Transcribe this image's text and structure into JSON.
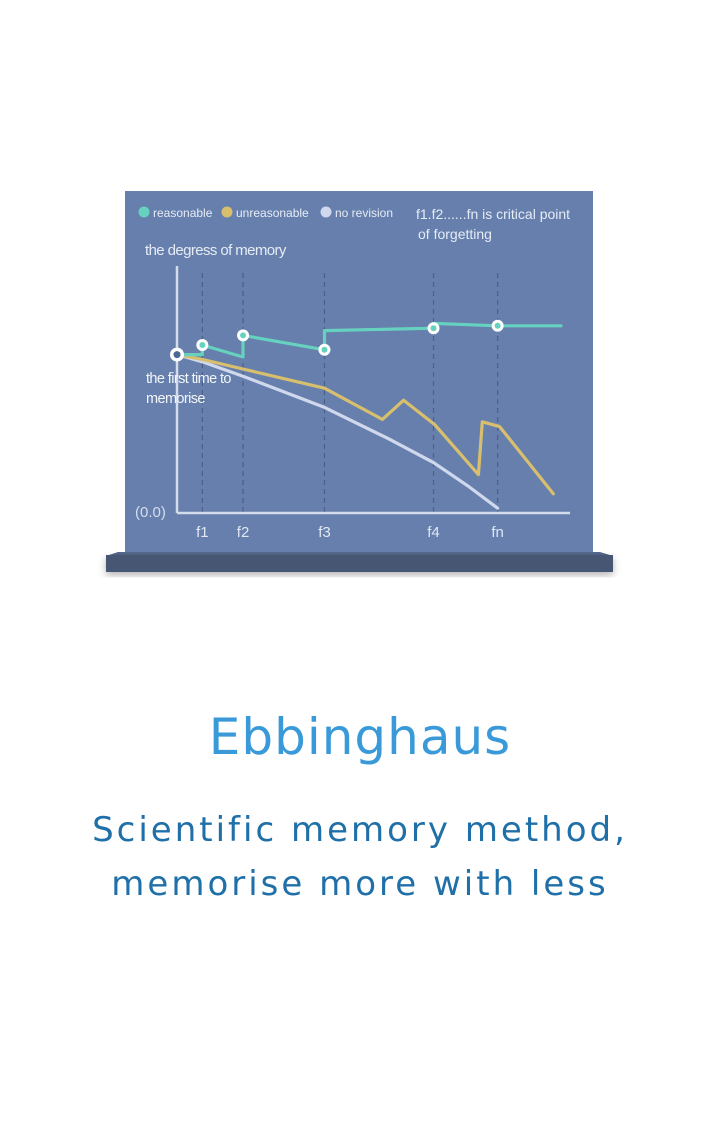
{
  "title": "Ebbinghaus",
  "subtitle_lines": [
    "Scientific memory method,",
    "memorise more with less"
  ],
  "colors": {
    "board": "#667fac",
    "board_shelf": "#465672",
    "reasonable": "#67d1bf",
    "unreasonable": "#d8bf6e",
    "no_revision": "#d0d8ee",
    "axis": "#d3dcec",
    "title": "#3a9ad9",
    "subtitle": "#1f6fa8"
  },
  "chart_data": {
    "type": "line",
    "ylabel": "the degress of memory",
    "origin_label": "(0.0)",
    "annotation_start": [
      "the first time to",
      "memorise"
    ],
    "note": [
      "f1.f2......fn  is critical point",
      "of forgetting"
    ],
    "critical_points": [
      "f1",
      "f2",
      "f3",
      "f4",
      "fn"
    ],
    "legend": [
      "reasonable",
      "unreasonable",
      "no revision"
    ],
    "xlim": [
      0,
      100
    ],
    "ylim": [
      0,
      100
    ],
    "critical_x": [
      6.6,
      17.2,
      38.4,
      66.8,
      83.5
    ],
    "series": [
      {
        "name": "reasonable",
        "x": [
          0,
          6.6,
          6.6,
          17.2,
          17.2,
          38.4,
          38.4,
          66.8,
          66.8,
          83.5,
          100
        ],
        "y": [
          66,
          66,
          70,
          65,
          74,
          68,
          76,
          77,
          79,
          78,
          78
        ],
        "markers_x": [
          0,
          6.6,
          17.2,
          38.4,
          66.8,
          83.5
        ],
        "markers_y": [
          66,
          70,
          74,
          68,
          77,
          78
        ]
      },
      {
        "name": "unreasonable",
        "x": [
          0,
          6.6,
          17.2,
          38.4,
          53.5,
          59,
          67,
          78.5,
          79.5,
          84,
          98
        ],
        "y": [
          66,
          64,
          60,
          52,
          39,
          47,
          37,
          16,
          38,
          36,
          8
        ],
        "markers_x": [],
        "markers_y": []
      },
      {
        "name": "no revision",
        "x": [
          0,
          6.6,
          17.2,
          38.4,
          55,
          66.8,
          76,
          83.5
        ],
        "y": [
          66,
          63,
          57,
          44,
          31,
          21,
          11,
          2
        ],
        "markers_x": [],
        "markers_y": []
      }
    ]
  }
}
